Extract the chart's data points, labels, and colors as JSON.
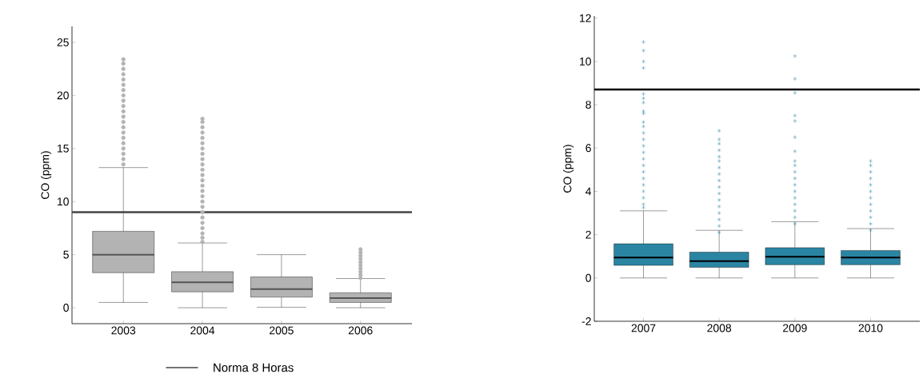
{
  "chart_data": [
    {
      "type": "box",
      "ylabel": "CO (ppm)",
      "categories": [
        "2003",
        "2004",
        "2005",
        "2006"
      ],
      "color": "#b3b3b3",
      "marker": "circle",
      "legend": "bottom",
      "ylim": [
        -1.5,
        26.5
      ],
      "yticks": [
        0,
        5,
        10,
        15,
        20,
        25
      ],
      "boxes": [
        {
          "low": 0.5,
          "q1": 3.3,
          "median": 5.0,
          "q3": 7.2,
          "high": 13.2,
          "outliers": [
            13.5,
            14,
            14.5,
            15,
            15.5,
            16,
            16.5,
            17,
            17.5,
            18,
            18.5,
            19,
            19.5,
            20,
            20.5,
            21,
            21.5,
            22,
            22.5,
            23,
            23.4
          ]
        },
        {
          "low": 0,
          "q1": 1.5,
          "median": 2.4,
          "q3": 3.4,
          "high": 6.1,
          "outliers": [
            6.2,
            6.6,
            7,
            7.5,
            8,
            8.5,
            9,
            9.5,
            10,
            10.5,
            11,
            11.5,
            12,
            12.5,
            13,
            13.5,
            14,
            14.5,
            15,
            15.5,
            16,
            16.5,
            17,
            17.5,
            17.8
          ]
        },
        {
          "low": 0.05,
          "q1": 1.0,
          "median": 1.75,
          "q3": 2.9,
          "high": 5.0
        },
        {
          "low": 0,
          "q1": 0.5,
          "median": 0.9,
          "q3": 1.4,
          "high": 2.75,
          "outliers": [
            2.8,
            3.1,
            3.4,
            3.7,
            4,
            4.3,
            4.6,
            4.9,
            5.2,
            5.5
          ]
        }
      ],
      "ref_lines": [
        {
          "axis": "y",
          "value": 9,
          "label": "Norma 8 Horas",
          "color": "#444444"
        }
      ]
    },
    {
      "type": "box",
      "ylabel": "CO (ppm)",
      "categories": [
        "2007",
        "2008",
        "2009",
        "2010"
      ],
      "color": "#2a85a3",
      "marker": "star",
      "ylim": [
        -2,
        12.1
      ],
      "yticks": [
        -2,
        0,
        2,
        4,
        6,
        8,
        10,
        12
      ],
      "boxes": [
        {
          "low": 0,
          "q1": 0.58,
          "median": 0.94,
          "q3": 1.58,
          "high": 3.1,
          "outliers": [
            3.25,
            3.4,
            3.7,
            4,
            4.3,
            4.6,
            4.9,
            5.2,
            5.5,
            5.8,
            6.1,
            6.4,
            6.7,
            7,
            7.2,
            7.6,
            7.7,
            8.1,
            8.3,
            8.5,
            9.7,
            10,
            10.5,
            10.9
          ]
        },
        {
          "low": 0,
          "q1": 0.49,
          "median": 0.78,
          "q3": 1.19,
          "high": 2.2,
          "outliers": [
            2.1,
            2.4,
            2.7,
            3,
            3.3,
            3.6,
            3.9,
            4.2,
            4.5,
            4.8,
            5.1,
            5.4,
            5.6,
            5.9,
            6.2,
            6.4,
            6.8
          ]
        },
        {
          "low": 0,
          "q1": 0.61,
          "median": 0.98,
          "q3": 1.4,
          "high": 2.6,
          "outliers": [
            2.5,
            2.8,
            3.1,
            3.4,
            3.7,
            4,
            4.3,
            4.6,
            4.9,
            5.2,
            5.4,
            5.85,
            6.5,
            7.25,
            7.5,
            8.55,
            9.2,
            10.25
          ]
        },
        {
          "low": 0,
          "q1": 0.61,
          "median": 0.94,
          "q3": 1.27,
          "high": 2.28,
          "outliers": [
            2.2,
            2.5,
            2.8,
            3.1,
            3.4,
            3.7,
            4,
            4.3,
            4.6,
            4.9,
            5.2,
            5.4
          ]
        }
      ],
      "ref_lines": [
        {
          "axis": "y",
          "value": 8.7,
          "color": "#000000"
        }
      ]
    }
  ]
}
